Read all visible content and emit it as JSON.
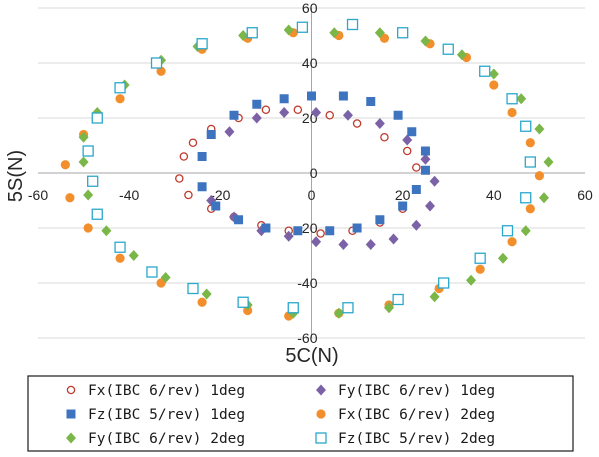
{
  "chart_data": {
    "type": "scatter",
    "xlabel": "5C(N)",
    "ylabel": "5S(N)",
    "xlim": [
      -60,
      60
    ],
    "ylim": [
      -60,
      60
    ],
    "xticks": [
      "-60",
      "-40",
      "-20",
      "0",
      "20",
      "40",
      "60"
    ],
    "yticks": [
      "-60",
      "-40",
      "-20",
      "0",
      "20",
      "40",
      "60"
    ],
    "grid": "horizontal",
    "legend_position": "bottom",
    "series": [
      {
        "name": "Fx(IBC 6/rev) 1deg",
        "marker": "circle-open",
        "color": "#c0392b",
        "points": [
          [
            -26,
            11
          ],
          [
            -28,
            6
          ],
          [
            -29,
            -2
          ],
          [
            -27,
            -8
          ],
          [
            -22,
            -13
          ],
          [
            -17,
            -16
          ],
          [
            -11,
            -19
          ],
          [
            -5,
            -21
          ],
          [
            2,
            -22
          ],
          [
            9,
            -21
          ],
          [
            15,
            -18
          ],
          [
            20,
            -13
          ],
          [
            23,
            -6
          ],
          [
            23,
            2
          ],
          [
            21,
            8
          ],
          [
            16,
            13
          ],
          [
            10,
            18
          ],
          [
            4,
            21
          ],
          [
            -3,
            23
          ],
          [
            -10,
            23
          ],
          [
            -16,
            20
          ],
          [
            -22,
            16
          ]
        ]
      },
      {
        "name": "Fy(IBC 6/rev) 1deg",
        "marker": "diamond-filled",
        "color": "#7b62a6",
        "points": [
          [
            -22,
            -10
          ],
          [
            -17,
            -16
          ],
          [
            -11,
            -21
          ],
          [
            -5,
            -23
          ],
          [
            1,
            -25
          ],
          [
            7,
            -26
          ],
          [
            13,
            -26
          ],
          [
            18,
            -24
          ],
          [
            23,
            -19
          ],
          [
            26,
            -12
          ],
          [
            27,
            -3
          ],
          [
            25,
            5
          ],
          [
            21,
            12
          ],
          [
            15,
            18
          ],
          [
            8,
            21
          ],
          [
            1,
            22
          ],
          [
            -6,
            22
          ],
          [
            -12,
            20
          ],
          [
            -18,
            15
          ]
        ]
      },
      {
        "name": "Fz(IBC 5/rev) 1deg",
        "marker": "square-filled",
        "color": "#3e74bf",
        "points": [
          [
            -24,
            -5
          ],
          [
            -21,
            -12
          ],
          [
            -16,
            -17
          ],
          [
            -10,
            -20
          ],
          [
            -3,
            -21
          ],
          [
            4,
            -21
          ],
          [
            10,
            -20
          ],
          [
            15,
            -17
          ],
          [
            20,
            -12
          ],
          [
            23,
            -6
          ],
          [
            25,
            1
          ],
          [
            25,
            8
          ],
          [
            22,
            15
          ],
          [
            19,
            21
          ],
          [
            13,
            26
          ],
          [
            7,
            28
          ],
          [
            0,
            28
          ],
          [
            -6,
            27
          ],
          [
            -12,
            25
          ],
          [
            -17,
            21
          ],
          [
            -22,
            14
          ],
          [
            -24,
            6
          ]
        ]
      },
      {
        "name": "Fx(IBC 6/rev) 2deg",
        "marker": "circle-filled",
        "color": "#f28e2b",
        "points": [
          [
            -50,
            14
          ],
          [
            -54,
            3
          ],
          [
            -53,
            -9
          ],
          [
            -49,
            -20
          ],
          [
            -42,
            -31
          ],
          [
            -33,
            -40
          ],
          [
            -24,
            -47
          ],
          [
            -14,
            -50
          ],
          [
            -5,
            -52
          ],
          [
            6,
            -51
          ],
          [
            17,
            -48
          ],
          [
            28,
            -42
          ],
          [
            37,
            -35
          ],
          [
            44,
            -25
          ],
          [
            48,
            -13
          ],
          [
            50,
            -1
          ],
          [
            48,
            11
          ],
          [
            44,
            22
          ],
          [
            40,
            32
          ],
          [
            34,
            42
          ],
          [
            26,
            47
          ],
          [
            16,
            49
          ],
          [
            6,
            50
          ],
          [
            -4,
            51
          ],
          [
            -14,
            49
          ],
          [
            -24,
            45
          ],
          [
            -33,
            37
          ],
          [
            -42,
            27
          ]
        ]
      },
      {
        "name": "Fy(IBC 6/rev) 2deg",
        "marker": "diamond-filled",
        "color": "#7ab648",
        "points": [
          [
            -50,
            4
          ],
          [
            -49,
            -8
          ],
          [
            -45,
            -21
          ],
          [
            -39,
            -30
          ],
          [
            -32,
            -38
          ],
          [
            -23,
            -44
          ],
          [
            -14,
            -48
          ],
          [
            -4,
            -51
          ],
          [
            6,
            -51
          ],
          [
            17,
            -49
          ],
          [
            27,
            -45
          ],
          [
            35,
            -39
          ],
          [
            42,
            -31
          ],
          [
            47,
            -21
          ],
          [
            51,
            -9
          ],
          [
            52,
            4
          ],
          [
            50,
            16
          ],
          [
            46,
            27
          ],
          [
            40,
            36
          ],
          [
            33,
            43
          ],
          [
            25,
            48
          ],
          [
            15,
            51
          ],
          [
            5,
            51
          ],
          [
            -5,
            52
          ],
          [
            -15,
            50
          ],
          [
            -25,
            46
          ],
          [
            -33,
            41
          ],
          [
            -41,
            32
          ],
          [
            -47,
            22
          ],
          [
            -50,
            13
          ]
        ]
      },
      {
        "name": "Fz(IBC 5/rev) 2deg",
        "marker": "square-open",
        "color": "#2aa7cc",
        "points": [
          [
            -48,
            -3
          ],
          [
            -47,
            -15
          ],
          [
            -42,
            -27
          ],
          [
            -35,
            -36
          ],
          [
            -26,
            -42
          ],
          [
            -15,
            -47
          ],
          [
            -4,
            -49
          ],
          [
            8,
            -49
          ],
          [
            19,
            -46
          ],
          [
            29,
            -40
          ],
          [
            37,
            -31
          ],
          [
            43,
            -21
          ],
          [
            47,
            -9
          ],
          [
            48,
            4
          ],
          [
            47,
            17
          ],
          [
            44,
            27
          ],
          [
            38,
            37
          ],
          [
            30,
            45
          ],
          [
            20,
            51
          ],
          [
            9,
            54
          ],
          [
            -2,
            53
          ],
          [
            -13,
            51
          ],
          [
            -24,
            47
          ],
          [
            -34,
            40
          ],
          [
            -42,
            31
          ],
          [
            -47,
            20
          ],
          [
            -49,
            8
          ]
        ]
      }
    ]
  }
}
